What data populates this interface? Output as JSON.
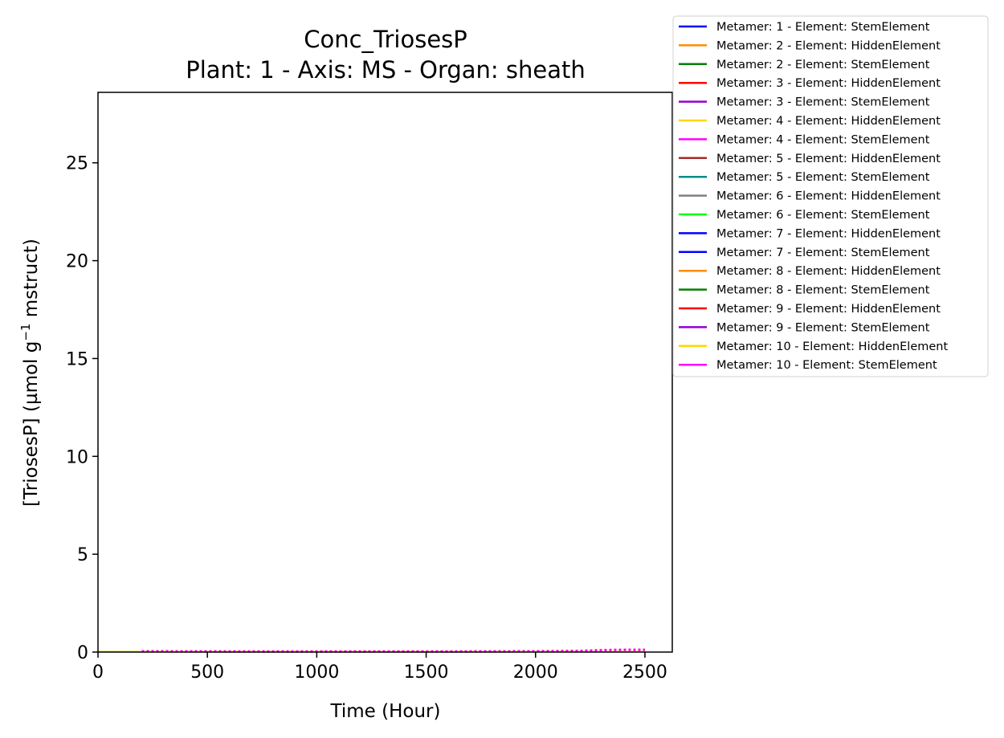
{
  "chart_data": {
    "type": "line",
    "title": "Conc_TriosesP",
    "subtitle": "Plant: 1 - Axis: MS - Organ: sheath",
    "xlabel": "Time (Hour)",
    "ylabel_main": "[TriosesP] (µmol g",
    "ylabel_sup": "−1",
    "ylabel_tail": " mstruct)",
    "xlim": [
      0,
      2625
    ],
    "ylim": [
      0,
      28.6
    ],
    "x_ticks": [
      0,
      500,
      1000,
      1500,
      2000,
      2500
    ],
    "y_ticks": [
      0,
      5,
      10,
      15,
      20,
      25
    ],
    "grid": false,
    "legend_placement": "outside-top-right",
    "series": [
      {
        "name": "Metamer: 1 - Element: StemElement",
        "color": "#0000ff",
        "x": [
          0,
          2500
        ],
        "y": [
          0.02,
          0.02
        ]
      },
      {
        "name": "Metamer: 2 - Element: HiddenElement",
        "color": "#ff8c00",
        "x": [
          0,
          2500
        ],
        "y": [
          0.02,
          0.02
        ]
      },
      {
        "name": "Metamer: 2 - Element: StemElement",
        "color": "#008000",
        "x": [
          0,
          2500
        ],
        "y": [
          0.02,
          0.02
        ]
      },
      {
        "name": "Metamer: 3 - Element: HiddenElement",
        "color": "#ff0000",
        "x": [
          0,
          2500
        ],
        "y": [
          0.02,
          0.02
        ]
      },
      {
        "name": "Metamer: 3 - Element: StemElement",
        "color": "#9400d3",
        "x": [
          0,
          2500
        ],
        "y": [
          0.02,
          0.02
        ]
      },
      {
        "name": "Metamer: 4 - Element: HiddenElement",
        "color": "#ffd700",
        "x": [
          0,
          2500
        ],
        "y": [
          0.02,
          0.02
        ]
      },
      {
        "name": "Metamer: 4 - Element: StemElement",
        "color": "#ff00ff",
        "x": [
          0,
          2500
        ],
        "y": [
          0.02,
          0.02
        ]
      },
      {
        "name": "Metamer: 5 - Element: HiddenElement",
        "color": "#a52a2a",
        "x": [
          0,
          2500
        ],
        "y": [
          0.02,
          0.02
        ]
      },
      {
        "name": "Metamer: 5 - Element: StemElement",
        "color": "#008b8b",
        "x": [
          0,
          2500
        ],
        "y": [
          0.02,
          0.02
        ]
      },
      {
        "name": "Metamer: 6 - Element: HiddenElement",
        "color": "#808080",
        "x": [
          0,
          2500
        ],
        "y": [
          0.02,
          0.02
        ]
      },
      {
        "name": "Metamer: 6 - Element: StemElement",
        "color": "#00ff00",
        "x": [
          0,
          2500
        ],
        "y": [
          0.02,
          0.02
        ]
      },
      {
        "name": "Metamer: 7 - Element: HiddenElement",
        "color": "#0000ff",
        "x": [
          1200,
          1430
        ],
        "y": [
          0.02,
          0.02
        ]
      },
      {
        "name": "Metamer: 7 - Element: StemElement",
        "color": "#0000ff",
        "x": [
          0,
          2500
        ],
        "y": [
          0.02,
          0.02
        ]
      },
      {
        "name": "Metamer: 8 - Element: HiddenElement",
        "color": "#ff8c00",
        "x": [
          0,
          2500
        ],
        "y": [
          0.02,
          0.02
        ]
      },
      {
        "name": "Metamer: 8 - Element: StemElement",
        "color": "#008000",
        "x": [
          0,
          1750
        ],
        "y": [
          0.02,
          0.02
        ]
      },
      {
        "name": "Metamer: 9 - Element: HiddenElement",
        "color": "#ff0000",
        "x": [
          0,
          2500
        ],
        "y": [
          0.02,
          0.02
        ]
      },
      {
        "name": "Metamer: 9 - Element: StemElement",
        "color": "#9400d3",
        "x": [
          1750,
          2300
        ],
        "y": [
          0.02,
          0.02
        ]
      },
      {
        "name": "Metamer: 10 - Element: HiddenElement",
        "color": "#ffd700",
        "x": [
          0,
          2500
        ],
        "y": [
          0.02,
          0.02
        ]
      },
      {
        "name": "Metamer: 10 - Element: StemElement",
        "color": "#ff00ff",
        "x": [
          200,
          800,
          1500,
          2000,
          2200,
          2300,
          2400,
          2500
        ],
        "y": [
          0.04,
          0.03,
          0.03,
          0.04,
          0.06,
          0.1,
          0.12,
          0.12
        ]
      }
    ]
  }
}
